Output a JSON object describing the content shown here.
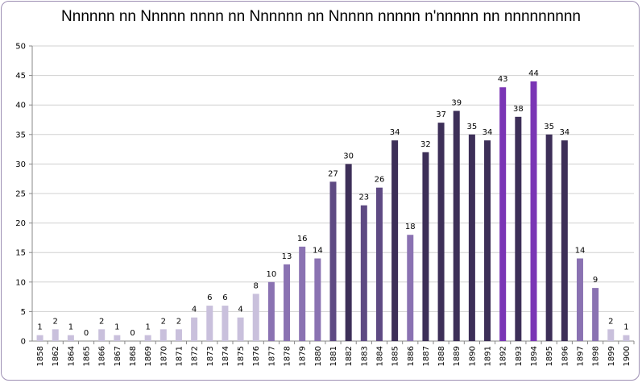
{
  "chart_data": {
    "type": "bar",
    "title": "Nnnnnn nn Nnnnn nnnn nn Nnnnnn nn Nnnnn nnnnn n'nnnnn nn nnnnnnnnn",
    "categories": [
      "1858",
      "1862",
      "1864",
      "1865",
      "1866",
      "1867",
      "1868",
      "1869",
      "1870",
      "1871",
      "1872",
      "1873",
      "1874",
      "1875",
      "1876",
      "1877",
      "1878",
      "1879",
      "1880",
      "1881",
      "1882",
      "1883",
      "1884",
      "1885",
      "1886",
      "1887",
      "1888",
      "1889",
      "1890",
      "1891",
      "1892",
      "1893",
      "1894",
      "1895",
      "1896",
      "1897",
      "1898",
      "1899",
      "1900"
    ],
    "values": [
      1,
      2,
      1,
      0,
      2,
      1,
      0,
      1,
      2,
      2,
      4,
      6,
      6,
      4,
      8,
      10,
      13,
      16,
      14,
      27,
      30,
      23,
      26,
      34,
      18,
      32,
      37,
      39,
      35,
      34,
      43,
      38,
      44,
      35,
      34,
      14,
      9,
      2,
      1
    ],
    "bar_colors": [
      "#c9c0dc",
      "#c9c0dc",
      "#c9c0dc",
      "#c9c0dc",
      "#c9c0dc",
      "#c9c0dc",
      "#c9c0dc",
      "#c9c0dc",
      "#c9c0dc",
      "#c9c0dc",
      "#c9c0dc",
      "#c9c0dc",
      "#c9c0dc",
      "#c9c0dc",
      "#c9c0dc",
      "#8a72b2",
      "#8a72b2",
      "#8a72b2",
      "#8a72b2",
      "#5e4a83",
      "#3d2f58",
      "#5e4a83",
      "#5e4a83",
      "#3d2f58",
      "#8a72b2",
      "#3d2f58",
      "#3d2f58",
      "#3d2f58",
      "#3d2f58",
      "#3d2f58",
      "#7a35b5",
      "#3d2f58",
      "#7a35b5",
      "#3d2f58",
      "#3d2f58",
      "#8a72b2",
      "#8a72b2",
      "#c9c0dc",
      "#c9c0dc"
    ],
    "ylim": [
      0,
      50
    ],
    "yticks": [
      0,
      5,
      10,
      15,
      20,
      25,
      30,
      35,
      40,
      45,
      50
    ],
    "grid": true,
    "legend": "none",
    "xlabel": "",
    "ylabel": ""
  }
}
